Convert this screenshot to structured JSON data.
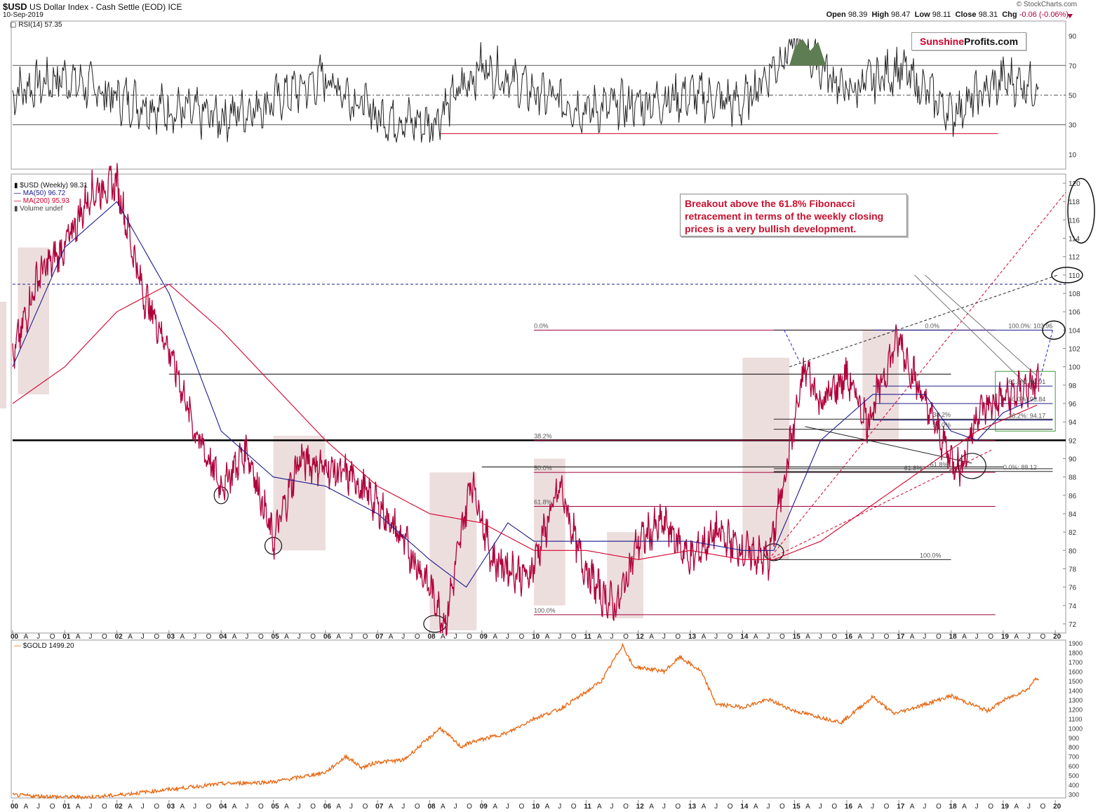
{
  "header": {
    "symbol": "$USD",
    "name": "US Dollar Index - Cash Settle (EOD)",
    "exchange": "ICE",
    "date": "10-Sep-2019",
    "logo": "© StockCharts.com",
    "open_label": "Open",
    "open": "98.39",
    "high_label": "High",
    "high": "98.47",
    "low_label": "Low",
    "low": "98.11",
    "close_label": "Close",
    "close": "98.31",
    "chg_label": "Chg",
    "chg": "-0.06 (-0.06%)"
  },
  "brand": {
    "part1": "Sunshine",
    "part2": "Profits.com"
  },
  "callout": {
    "text": "Breakout above the 61.8% Fibonacci retracement in terms of the weekly closing prices is a very bullish development."
  },
  "colors": {
    "price": "#b0003a",
    "ma50": "#1c1c8c",
    "ma200": "#d2002c",
    "gold": "#e8640c",
    "shade": "#e7d3d3",
    "rsi_over": "#5e7d52",
    "rsi_under": "#8b6a6a"
  },
  "chart_data": [
    {
      "type": "line",
      "panel": "rsi",
      "legend": "RSI(14) 57.35",
      "levels": [
        70,
        50,
        30
      ],
      "y_ticks": [
        "90",
        "70",
        "50",
        "30",
        "10"
      ],
      "ylim": [
        0,
        100
      ],
      "x": [
        "2000",
        "2001",
        "2002",
        "2003",
        "2004",
        "2005",
        "2006",
        "2007",
        "2008",
        "2009",
        "2010",
        "2011",
        "2012",
        "2013",
        "2014",
        "2015",
        "2016",
        "2017",
        "2018",
        "2019",
        "2019-09"
      ],
      "values": [
        52,
        62,
        48,
        40,
        35,
        46,
        62,
        36,
        30,
        70,
        52,
        40,
        44,
        50,
        44,
        86,
        52,
        68,
        38,
        60,
        57.35
      ]
    },
    {
      "type": "line",
      "panel": "price",
      "legend": [
        "$USD (Weekly) 98.31",
        "MA(50) 96.72",
        "MA(200) 95.93",
        "Volume undef"
      ],
      "y_ticks": [
        "120",
        "118",
        "116",
        "114",
        "112",
        "110",
        "108",
        "106",
        "104",
        "102",
        "100",
        "98",
        "96",
        "94",
        "92",
        "90",
        "88",
        "86",
        "84",
        "82",
        "80",
        "78",
        "76",
        "74",
        "72"
      ],
      "ylim": [
        71,
        121
      ],
      "x_labels": [
        "00",
        "A",
        "J",
        "O",
        "01",
        "A",
        "J",
        "O",
        "02",
        "A",
        "J",
        "O",
        "03",
        "A",
        "J",
        "O",
        "04",
        "A",
        "J",
        "O",
        "05",
        "A",
        "J",
        "O",
        "06",
        "A",
        "J",
        "O",
        "07",
        "A",
        "J",
        "O",
        "08",
        "A",
        "J",
        "O",
        "09",
        "A",
        "J",
        "O",
        "10",
        "A",
        "J",
        "O",
        "11",
        "A",
        "J",
        "O",
        "12",
        "A",
        "J",
        "O",
        "13",
        "A",
        "J",
        "O",
        "14",
        "A",
        "J",
        "O",
        "15",
        "A",
        "J",
        "O",
        "16",
        "A",
        "J",
        "O",
        "17",
        "A",
        "J",
        "O",
        "18",
        "A",
        "J",
        "O",
        "19",
        "A",
        "J",
        "O",
        "20",
        "A"
      ],
      "series": [
        {
          "name": "$USD (Weekly)",
          "x": [
            2000.0,
            2000.5,
            2001.0,
            2001.5,
            2002.0,
            2002.5,
            2003.0,
            2003.5,
            2004.0,
            2004.5,
            2005.0,
            2005.5,
            2006.0,
            2006.5,
            2007.0,
            2007.5,
            2008.0,
            2008.3,
            2008.8,
            2009.2,
            2009.9,
            2010.5,
            2010.9,
            2011.3,
            2011.6,
            2012.0,
            2012.5,
            2013.0,
            2013.5,
            2014.0,
            2014.5,
            2015.2,
            2015.5,
            2016.0,
            2016.4,
            2016.9,
            2017.0,
            2017.5,
            2018.0,
            2018.2,
            2018.5,
            2018.8,
            2019.2,
            2019.69
          ],
          "values": [
            101,
            110,
            113,
            119,
            120,
            108,
            102,
            93,
            87,
            91,
            81,
            90,
            89,
            88,
            85,
            81,
            76,
            72,
            88,
            79,
            77,
            87,
            79,
            75,
            74,
            81,
            83,
            79,
            82,
            80,
            79,
            100,
            96,
            99,
            94,
            102,
            103,
            96,
            90,
            89,
            95,
            96,
            97,
            98.31
          ]
        },
        {
          "name": "MA(50)",
          "x": [
            2000.0,
            2001.0,
            2002.0,
            2003.0,
            2004.0,
            2005.0,
            2006.0,
            2007.0,
            2008.0,
            2008.7,
            2009.5,
            2010.0,
            2011.0,
            2012.0,
            2013.0,
            2014.0,
            2014.6,
            2015.5,
            2016.5,
            2017.5,
            2018.0,
            2018.5,
            2019.0,
            2019.69
          ],
          "values": [
            100,
            113,
            118,
            108,
            93,
            88,
            87,
            84,
            79,
            76,
            83,
            81,
            81,
            81,
            81,
            80,
            80,
            92,
            97,
            97,
            93,
            92,
            95,
            96.72
          ]
        },
        {
          "name": "MA(200)",
          "x": [
            2000.0,
            2001.0,
            2002.0,
            2003.0,
            2004.0,
            2005.0,
            2006.0,
            2007.0,
            2008.0,
            2009.0,
            2010.0,
            2011.0,
            2012.0,
            2013.0,
            2014.0,
            2014.6,
            2015.5,
            2016.5,
            2017.5,
            2018.5,
            2019.69
          ],
          "values": [
            96,
            100,
            106,
            109,
            104,
            98,
            92,
            87,
            84,
            83,
            80,
            80,
            79,
            80,
            79,
            79,
            81,
            85,
            89,
            93,
            95.93
          ]
        }
      ],
      "horizontal_levels": [
        109,
        92,
        99
      ],
      "fibonacci_left": [
        "0.0%",
        "38.2%",
        "50.0%",
        "61.8%",
        "100.0%"
      ],
      "fibonacci_mid": [
        "0.0%",
        "61.8%",
        "100.0%"
      ],
      "fibonacci_right": [
        "100.0%: 103.96",
        "61.8%: 97.91",
        "50.0%: 95.84",
        "38.2%: 94.17",
        "38.2%",
        "50.0%",
        "61.8%",
        "0.0%: 88.12"
      ]
    },
    {
      "type": "line",
      "panel": "gold",
      "legend": "$GOLD 1499.20",
      "y_ticks": [
        "1900",
        "1800",
        "1700",
        "1600",
        "1500",
        "1400",
        "1300",
        "1200",
        "1100",
        "1000",
        "900",
        "800",
        "700",
        "600",
        "500",
        "400",
        "300"
      ],
      "ylim": [
        260,
        1930
      ],
      "x": [
        2000.0,
        2001.0,
        2001.5,
        2002.0,
        2003.0,
        2004.0,
        2005.0,
        2006.0,
        2006.4,
        2006.7,
        2007.0,
        2007.5,
        2008.0,
        2008.2,
        2008.6,
        2008.8,
        2009.5,
        2010.0,
        2010.5,
        2011.0,
        2011.3,
        2011.7,
        2011.9,
        2012.5,
        2012.8,
        2013.2,
        2013.5,
        2014.0,
        2014.5,
        2015.0,
        2015.9,
        2016.5,
        2016.9,
        2017.5,
        2018.0,
        2018.7,
        2019.0,
        2019.5,
        2019.6,
        2019.69
      ],
      "values": [
        290,
        270,
        270,
        290,
        350,
        410,
        430,
        530,
        700,
        580,
        640,
        660,
        900,
        1000,
        800,
        850,
        950,
        1100,
        1200,
        1380,
        1500,
        1880,
        1650,
        1600,
        1750,
        1600,
        1250,
        1220,
        1300,
        1180,
        1060,
        1330,
        1150,
        1250,
        1340,
        1180,
        1290,
        1420,
        1530,
        1499.2
      ]
    }
  ]
}
